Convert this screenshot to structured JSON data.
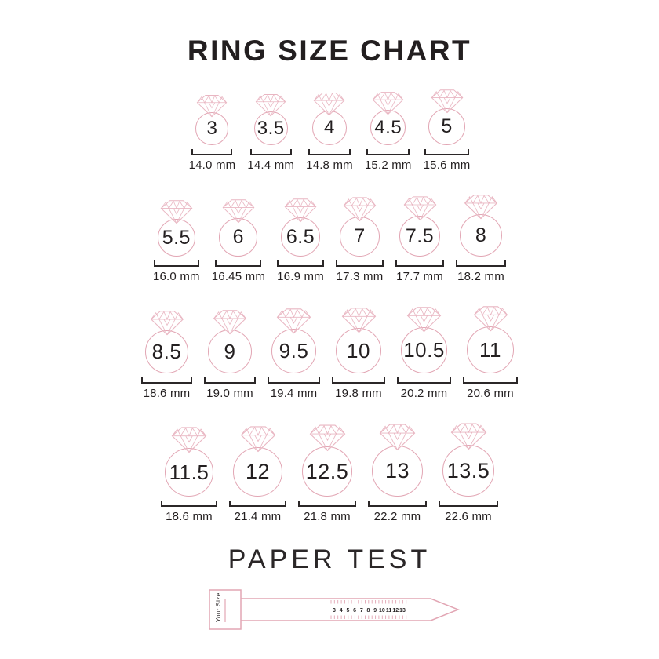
{
  "title": "RING SIZE CHART",
  "colors": {
    "pink": "#e2a6b4",
    "pink_light": "#e9b6c2",
    "text_dark": "#2b2728"
  },
  "chart": {
    "type": "table",
    "rows": [
      {
        "items": [
          {
            "size": "3",
            "mm": "14.0 mm"
          },
          {
            "size": "3.5",
            "mm": "14.4 mm"
          },
          {
            "size": "4",
            "mm": "14.8 mm"
          },
          {
            "size": "4.5",
            "mm": "15.2 mm"
          },
          {
            "size": "5",
            "mm": "15.6 mm"
          }
        ]
      },
      {
        "items": [
          {
            "size": "5.5",
            "mm": "16.0 mm"
          },
          {
            "size": "6",
            "mm": "16.45 mm"
          },
          {
            "size": "6.5",
            "mm": "16.9 mm"
          },
          {
            "size": "7",
            "mm": "17.3 mm"
          },
          {
            "size": "7.5",
            "mm": "17.7 mm"
          },
          {
            "size": "8",
            "mm": "18.2 mm"
          }
        ]
      },
      {
        "items": [
          {
            "size": "8.5",
            "mm": "18.6 mm"
          },
          {
            "size": "9",
            "mm": "19.0 mm"
          },
          {
            "size": "9.5",
            "mm": "19.4 mm"
          },
          {
            "size": "10",
            "mm": "19.8 mm"
          },
          {
            "size": "10.5",
            "mm": "20.2 mm"
          },
          {
            "size": "11",
            "mm": "20.6 mm"
          }
        ]
      },
      {
        "items": [
          {
            "size": "11.5",
            "mm": "18.6 mm"
          },
          {
            "size": "12",
            "mm": "21.4 mm"
          },
          {
            "size": "12.5",
            "mm": "21.8 mm"
          },
          {
            "size": "13",
            "mm": "22.2 mm"
          },
          {
            "size": "13.5",
            "mm": "22.6 mm"
          }
        ]
      }
    ]
  },
  "paper_test": {
    "title": "PAPER TEST",
    "tab_label": "Your Size",
    "ruler_numbers": [
      "3",
      "4",
      "5",
      "6",
      "7",
      "8",
      "9",
      "10",
      "11",
      "12",
      "13"
    ]
  }
}
